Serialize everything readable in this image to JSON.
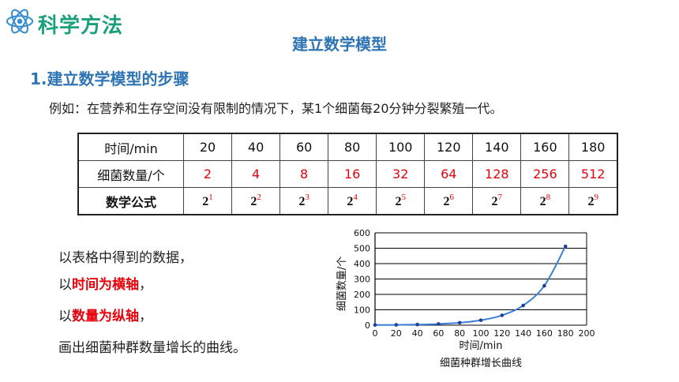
{
  "header": {
    "brand_label": "科学方法",
    "slide_title": "建立数学模型",
    "section_heading": "1.建立数学模型的步骤"
  },
  "example_text": "例如：在营养和生存空间没有限制的情况下，某1个细菌每20分钟分裂繁殖一代。",
  "table": {
    "row_labels": [
      "时间/min",
      "细菌数量/个",
      "数学公式"
    ],
    "times": [
      "20",
      "40",
      "60",
      "80",
      "100",
      "120",
      "140",
      "160",
      "180"
    ],
    "counts": [
      "2",
      "4",
      "8",
      "16",
      "32",
      "64",
      "128",
      "256",
      "512"
    ],
    "formula_base": "2",
    "exponents": [
      "1",
      "2",
      "3",
      "4",
      "5",
      "6",
      "7",
      "8",
      "9"
    ]
  },
  "steps": {
    "line1": "以表格中得到的数据，",
    "line2_prefix": "以",
    "line2_highlight": "时间为横轴",
    "line2_suffix": "，",
    "line3_prefix": "以",
    "line3_highlight": "数量为纵轴",
    "line3_suffix": "，",
    "line4": "画出细菌种群数量增长的曲线。"
  },
  "colors": {
    "brand": "#1aa07a",
    "title": "#2e74b5",
    "highlight": "#e8000b",
    "curve": "#3b7fd9",
    "points": "#1f3f99"
  },
  "chart_data": {
    "type": "line",
    "title": "细菌种群增长曲线",
    "xlabel": "时间/min",
    "ylabel": "细菌数量/个",
    "x_ticks": [
      0,
      20,
      40,
      60,
      80,
      100,
      120,
      140,
      160,
      180,
      200
    ],
    "y_ticks": [
      0,
      100,
      200,
      300,
      400,
      500,
      600
    ],
    "xlim": [
      0,
      200
    ],
    "ylim": [
      0,
      600
    ],
    "grid": "horizontal",
    "x": [
      0,
      20,
      40,
      60,
      80,
      100,
      120,
      140,
      160,
      180
    ],
    "y": [
      1,
      2,
      4,
      8,
      16,
      32,
      64,
      128,
      256,
      512
    ]
  }
}
